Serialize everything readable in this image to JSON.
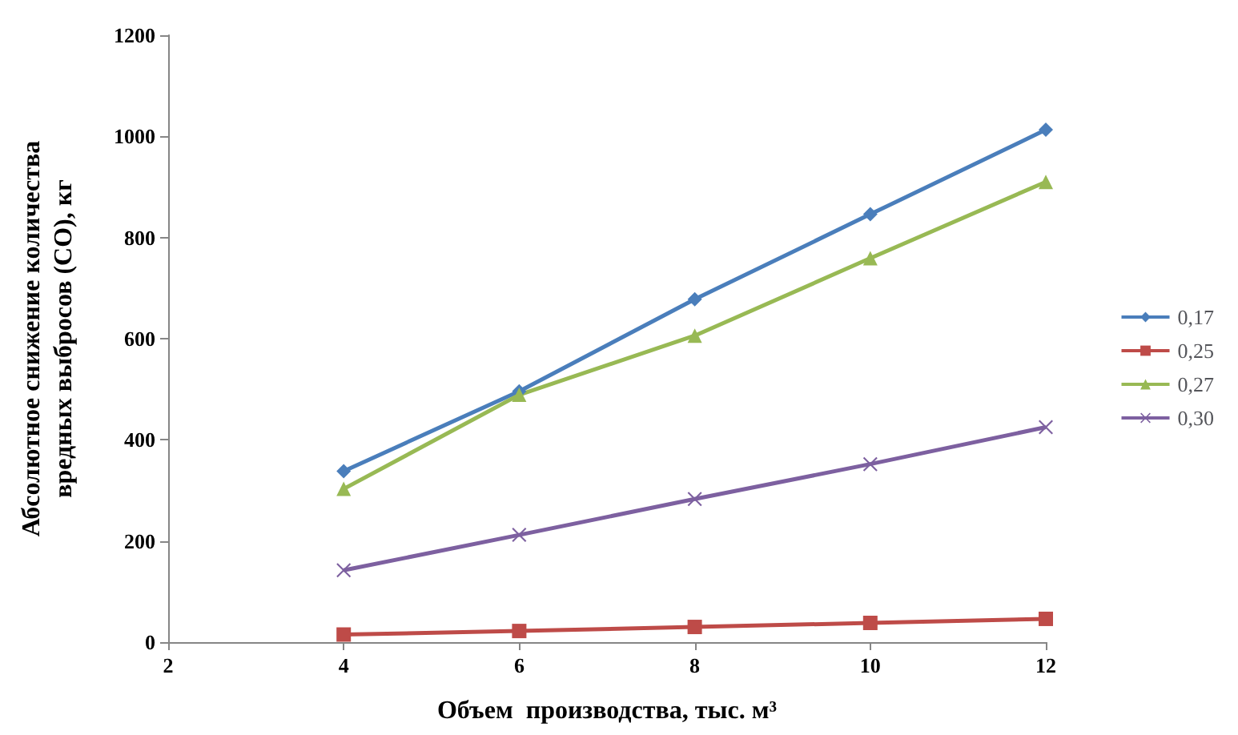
{
  "chart_data": {
    "type": "line",
    "xlabel": "Объем  производства, тыс. м³",
    "ylabel": "Абсолютное снижение количества\nвредных выбросов (СО), кг",
    "x": [
      4,
      6,
      8,
      10,
      12
    ],
    "series": [
      {
        "name": "0,17",
        "color": "#4a7ebb",
        "marker": "diamond",
        "values": [
          338,
          496,
          678,
          846,
          1013
        ]
      },
      {
        "name": "0,25",
        "color": "#be4b48",
        "marker": "square",
        "values": [
          15,
          22,
          30,
          38,
          46
        ]
      },
      {
        "name": "0,27",
        "color": "#98b954",
        "marker": "triangle",
        "values": [
          303,
          489,
          606,
          759,
          910
        ]
      },
      {
        "name": "0,30",
        "color": "#7d60a0",
        "marker": "cross",
        "values": [
          142,
          212,
          283,
          352,
          425
        ]
      }
    ],
    "xlim": [
      2,
      12
    ],
    "xticks": [
      2,
      4,
      6,
      8,
      10,
      12
    ],
    "ylim": [
      0,
      1200
    ],
    "yticks": [
      0,
      200,
      400,
      600,
      800,
      1000,
      1200
    ],
    "grid": false,
    "legend": "right",
    "line_style": "solid"
  }
}
